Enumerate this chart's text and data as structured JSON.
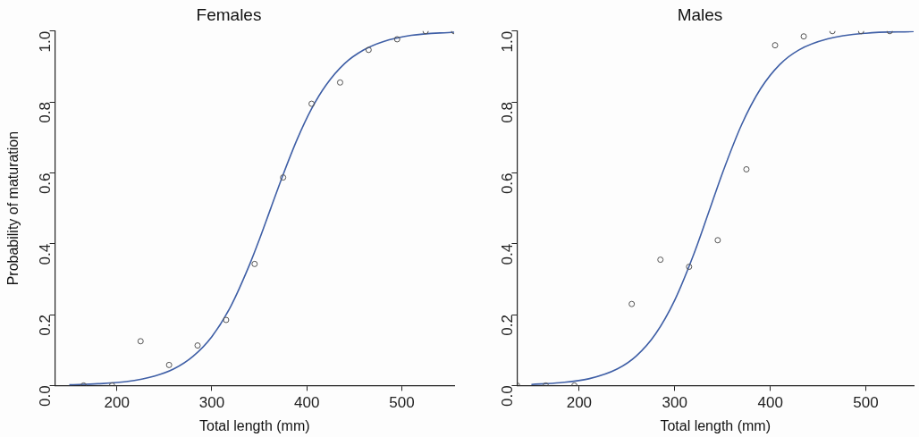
{
  "chart_data": [
    {
      "type": "scatter",
      "title": "Females",
      "xlabel": "Total length (mm)",
      "ylabel": "Probability of maturation",
      "xlim": [
        135,
        555
      ],
      "xticks": [
        200,
        300,
        400,
        500
      ],
      "ylim": [
        0,
        1
      ],
      "yticks": [
        {
          "value": 0,
          "label": "0.0"
        },
        {
          "value": 0.2,
          "label": "0.2"
        },
        {
          "value": 0.4,
          "label": "0.4"
        },
        {
          "value": 0.6,
          "label": "0.6"
        },
        {
          "value": 0.8,
          "label": "0.8"
        },
        {
          "value": 1,
          "label": "1.0"
        }
      ],
      "grid": false,
      "legend": false,
      "series": [
        {
          "type": "scatter",
          "marker": "circle",
          "color": "#555555",
          "x": [
            165,
            195,
            225,
            255,
            285,
            315,
            345,
            375,
            405,
            435,
            465,
            495,
            525,
            555
          ],
          "values": [
            0,
            0,
            0.125,
            0.058,
            0.113,
            0.185,
            0.343,
            0.587,
            0.795,
            0.855,
            0.947,
            0.977,
            1,
            1
          ]
        },
        {
          "type": "line",
          "marker": "none",
          "color": "#3f5fa6",
          "line_style": "solid",
          "x": [
            150,
            180,
            210,
            240,
            260,
            280,
            300,
            320,
            340,
            350,
            362,
            375,
            390,
            405,
            420,
            440,
            460,
            480,
            510,
            555
          ],
          "values": [
            0.002,
            0.005,
            0.011,
            0.027,
            0.047,
            0.082,
            0.138,
            0.224,
            0.343,
            0.412,
            0.5,
            0.595,
            0.696,
            0.781,
            0.847,
            0.909,
            0.947,
            0.97,
            0.988,
            0.997
          ]
        }
      ]
    },
    {
      "type": "scatter",
      "title": "Males",
      "xlabel": "Total length (mm)",
      "xlim": [
        135,
        550
      ],
      "xticks": [
        200,
        300,
        400,
        500
      ],
      "ylim": [
        0,
        1
      ],
      "yticks": [
        {
          "value": 0,
          "label": "0.0"
        },
        {
          "value": 0.2,
          "label": "0.2"
        },
        {
          "value": 0.4,
          "label": "0.4"
        },
        {
          "value": 0.6,
          "label": "0.6"
        },
        {
          "value": 0.8,
          "label": "0.8"
        },
        {
          "value": 1,
          "label": "1.0"
        }
      ],
      "grid": false,
      "legend": false,
      "series": [
        {
          "type": "scatter",
          "marker": "circle",
          "color": "#555555",
          "x": [
            135,
            165,
            195,
            255,
            285,
            315,
            345,
            375,
            405,
            435,
            465,
            495,
            525
          ],
          "values": [
            0,
            0,
            0,
            0.23,
            0.355,
            0.335,
            0.41,
            0.61,
            0.96,
            0.985,
            1,
            1,
            1
          ]
        },
        {
          "type": "line",
          "marker": "none",
          "color": "#3f5fa6",
          "line_style": "solid",
          "x": [
            150,
            180,
            210,
            240,
            260,
            280,
            300,
            320,
            337,
            350,
            370,
            390,
            410,
            430,
            460,
            500,
            550
          ],
          "values": [
            0.003,
            0.008,
            0.019,
            0.047,
            0.084,
            0.146,
            0.241,
            0.371,
            0.5,
            0.6,
            0.736,
            0.838,
            0.906,
            0.947,
            0.978,
            0.994,
            0.999
          ]
        }
      ]
    }
  ]
}
